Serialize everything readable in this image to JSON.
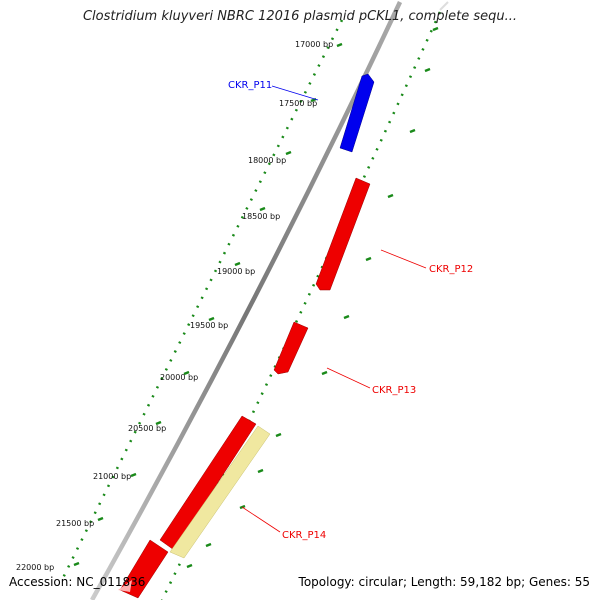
{
  "title": "Clostridium kluyveri NBRC 12016 plasmid pCKL1, complete sequ...",
  "footer": {
    "accession": "Accession: NC_011836",
    "summary": "Topology: circular; Length: 59,182 bp; Genes: 55"
  },
  "ticks": [
    {
      "bp": 17000,
      "label": "17000 bp"
    },
    {
      "bp": 17500,
      "label": "17500 bp"
    },
    {
      "bp": 18000,
      "label": "18000 bp"
    },
    {
      "bp": 18500,
      "label": "18500 bp"
    },
    {
      "bp": 19000,
      "label": "19000 bp"
    },
    {
      "bp": 19500,
      "label": "19500 bp"
    },
    {
      "bp": 20000,
      "label": "20000 bp"
    },
    {
      "bp": 20500,
      "label": "20500 bp"
    },
    {
      "bp": 21000,
      "label": "21000 bp"
    },
    {
      "bp": 21500,
      "label": "21500 bp"
    },
    {
      "bp": 22000,
      "label": "22000 bp"
    }
  ],
  "genes": [
    {
      "name": "CKR_P11",
      "color": "#0000ee"
    },
    {
      "name": "CKR_P12",
      "color": "#ee0000"
    },
    {
      "name": "CKR_P13",
      "color": "#ee0000"
    },
    {
      "name": "CKR_P14",
      "color": "#ee0000"
    }
  ],
  "colors": {
    "backbone": "#888888",
    "dotted_ring": "#1a8a1a",
    "gene_forward": "#0000ee",
    "gene_reverse": "#ee0000",
    "feature_highlight": "#f0e8a0"
  }
}
